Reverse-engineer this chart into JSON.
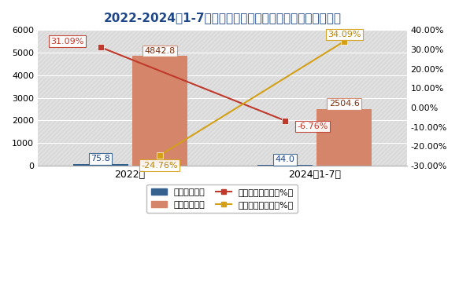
{
  "title": "2022-2024年1-7月我国四氧化三钴进出口量及同比增长情况",
  "categories": [
    "2022年",
    "2024年1-7月"
  ],
  "import_values": [
    75.8,
    44.0
  ],
  "export_values": [
    4842.8,
    2504.6
  ],
  "import_yoy": [
    31.09,
    -6.76
  ],
  "export_yoy": [
    -24.76,
    34.09
  ],
  "import_bar_color": "#34618e",
  "export_bar_color": "#d4856a",
  "import_line_color": "#c0392b",
  "export_line_color": "#d4a017",
  "bar_width": 0.3,
  "x_positions": [
    0.5,
    1.5
  ],
  "xlim": [
    0.0,
    2.0
  ],
  "ylim_left": [
    0,
    6000
  ],
  "ylim_right": [
    -30,
    40
  ],
  "yticks_left": [
    0,
    1000,
    2000,
    3000,
    4000,
    5000,
    6000
  ],
  "yticks_right": [
    -30,
    -20,
    -10,
    0,
    10,
    20,
    30,
    40
  ],
  "background_color": "#ffffff",
  "plot_bg_color": "#d9d9d9",
  "title_color": "#1f4788",
  "title_fontsize": 11,
  "tick_fontsize": 8,
  "annotation_fontsize": 8
}
